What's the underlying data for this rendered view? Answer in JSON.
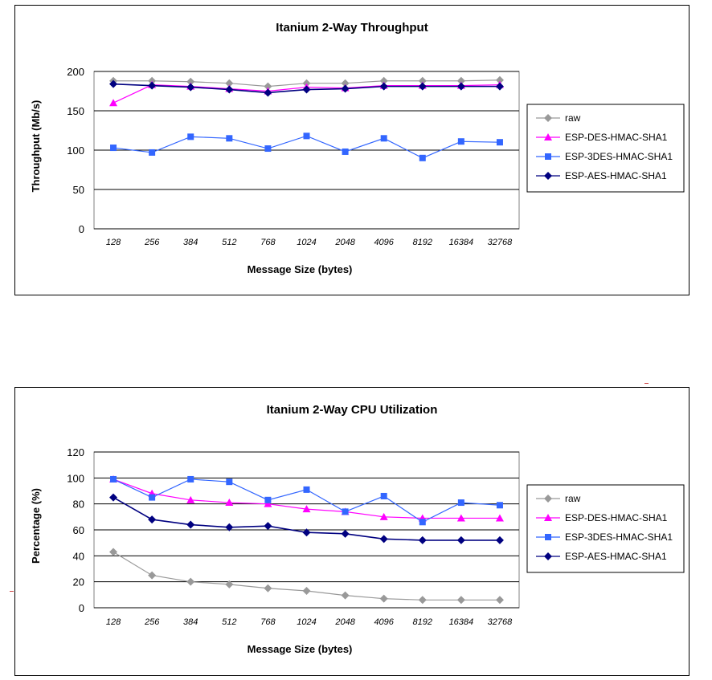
{
  "chart_data": [
    {
      "type": "line",
      "title": "Itanium 2-Way Throughput",
      "xlabel": "Message Size (bytes)",
      "ylabel": "Throughput (Mb/s)",
      "ylim": [
        0,
        200
      ],
      "yticks": [
        0,
        50,
        100,
        150,
        200
      ],
      "grid": true,
      "legend": "right",
      "categories": [
        "128",
        "256",
        "384",
        "512",
        "768",
        "1024",
        "2048",
        "4096",
        "8192",
        "16384",
        "32768"
      ],
      "series": [
        {
          "name": "raw",
          "color": "#999999",
          "marker": "diamond",
          "values": [
            188,
            188,
            187,
            185,
            181,
            185,
            185,
            188,
            188,
            188,
            189
          ]
        },
        {
          "name": "ESP-DES-HMAC-SHA1",
          "color": "#ff00ff",
          "marker": "triangle",
          "values": [
            160,
            183,
            181,
            178,
            175,
            180,
            179,
            182,
            182,
            182,
            183
          ]
        },
        {
          "name": "ESP-3DES-HMAC-SHA1",
          "color": "#3366ff",
          "marker": "square",
          "values": [
            103,
            97,
            117,
            115,
            102,
            118,
            98,
            115,
            90,
            111,
            110
          ]
        },
        {
          "name": "ESP-AES-HMAC-SHA1",
          "color": "#000080",
          "marker": "diamond",
          "values": [
            184,
            182,
            180,
            177,
            173,
            177,
            178,
            181,
            181,
            181,
            181
          ]
        }
      ]
    },
    {
      "type": "line",
      "title": "Itanium 2-Way CPU Utilization",
      "xlabel": "Message Size (bytes)",
      "ylabel": "Percentage (%)",
      "ylim": [
        0,
        120
      ],
      "yticks": [
        0,
        20,
        40,
        60,
        80,
        100,
        120
      ],
      "grid": true,
      "legend": "right",
      "categories": [
        "128",
        "256",
        "384",
        "512",
        "768",
        "1024",
        "2048",
        "4096",
        "8192",
        "16384",
        "32768"
      ],
      "series": [
        {
          "name": "raw",
          "color": "#999999",
          "marker": "diamond",
          "values": [
            43,
            25,
            20,
            18,
            15,
            13,
            9.5,
            7,
            6,
            6,
            6
          ]
        },
        {
          "name": "ESP-DES-HMAC-SHA1",
          "color": "#ff00ff",
          "marker": "triangle",
          "values": [
            99,
            88,
            83,
            81,
            80,
            76,
            74,
            70,
            69,
            69,
            69
          ]
        },
        {
          "name": "ESP-3DES-HMAC-SHA1",
          "color": "#3366ff",
          "marker": "square",
          "values": [
            99,
            85,
            99,
            97,
            83,
            91,
            74,
            86,
            66,
            81,
            79
          ]
        },
        {
          "name": "ESP-AES-HMAC-SHA1",
          "color": "#000080",
          "marker": "diamond",
          "values": [
            85,
            68,
            64,
            62,
            63,
            58,
            57,
            53,
            52,
            52,
            52
          ]
        }
      ]
    }
  ]
}
